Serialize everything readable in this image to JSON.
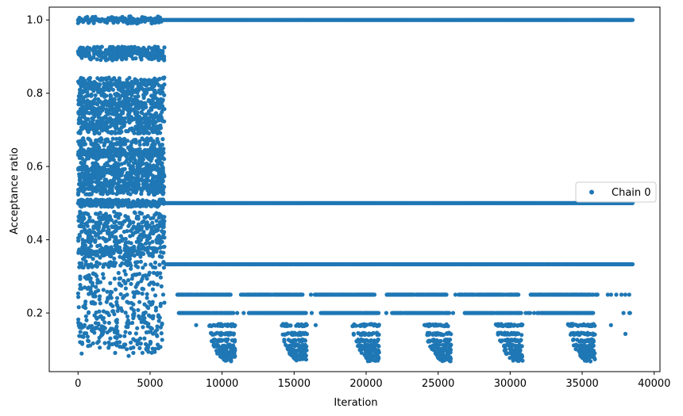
{
  "chart_data": {
    "type": "scatter",
    "title": "",
    "xlabel": "Iteration",
    "ylabel": "Acceptance ratio",
    "xlim": [
      -2000,
      40400
    ],
    "ylim": [
      0.04,
      1.035
    ],
    "xticks": [
      0,
      5000,
      10000,
      15000,
      20000,
      25000,
      30000,
      35000,
      40000
    ],
    "xtick_labels": [
      "0",
      "5000",
      "10000",
      "15000",
      "20000",
      "25000",
      "30000",
      "35000",
      "40000"
    ],
    "yticks": [
      0.2,
      0.4,
      0.6,
      0.8,
      1.0
    ],
    "ytick_labels": [
      "0.2",
      "0.4",
      "0.6",
      "0.8",
      "1.0"
    ],
    "grid": false,
    "legend": {
      "placement": "center-right",
      "entries": [
        "Chain 0"
      ]
    },
    "series": [
      {
        "name": "Chain 0",
        "color": "#1f77b4",
        "marker": "circle",
        "iteration_range": [
          0,
          38500
        ],
        "description_levels": [
          1.0,
          0.5,
          0.333,
          0.25,
          0.2,
          0.167,
          0.143,
          0.125,
          0.111,
          0.1
        ],
        "segments": [
          {
            "x_range": [
              0,
              6000
            ],
            "pattern": "burn-in, dense scatter between 0.06 and 0.94 with bands near 1.0, 0.91, 0.83, 0.80, 0.75, 0.70, 0.66, 0.63, 0.60, 0.55, 0.50, 0.45, 0.40, 0.33"
          },
          {
            "x_range": [
              6000,
              38500
            ],
            "pattern": "values concentrated at 1.0, 0.5, 0.333, 0.25, 0.2 with periodic clusters down to ~0.07 around x = 10000, 15000, 20000, 25000, 30000, 35000"
          }
        ]
      }
    ]
  }
}
